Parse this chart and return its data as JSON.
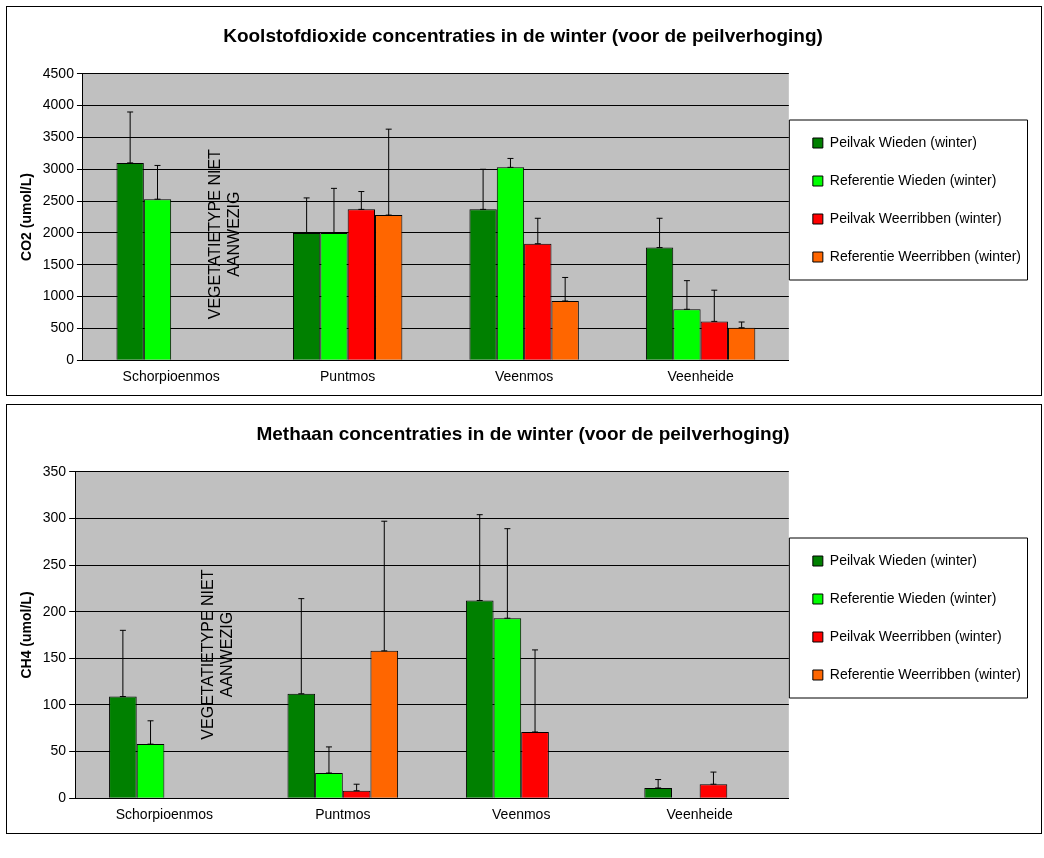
{
  "chart_data": [
    {
      "type": "bar",
      "title": "Koolstofdioxide concentraties in de winter (voor de peilverhoging)",
      "ylabel": "CO2 (umol/L)",
      "categories": [
        "Schorpioenmos",
        "Puntmos",
        "Veenmos",
        "Veenheide"
      ],
      "series": [
        {
          "name": "Peilvak Wieden (winter)",
          "color": "#008000",
          "values": [
            3100,
            2000,
            2370,
            1770
          ],
          "errors": [
            [
              3100,
              3900
            ],
            [
              2000,
              2550
            ],
            [
              2370,
              3000
            ],
            [
              1770,
              2230
            ]
          ]
        },
        {
          "name": "Referentie Wieden (winter)",
          "color": "#00ff00",
          "values": [
            2530,
            2000,
            3030,
            800
          ],
          "errors": [
            [
              2530,
              3060
            ],
            [
              2000,
              2700
            ],
            [
              3030,
              3170
            ],
            [
              800,
              1250
            ]
          ]
        },
        {
          "name": "Peilvak Weerribben (winter)",
          "color": "#ff0000",
          "values": [
            null,
            2370,
            1830,
            610
          ],
          "errors": [
            null,
            [
              2370,
              2650
            ],
            [
              1830,
              2230
            ],
            [
              610,
              1100
            ]
          ]
        },
        {
          "name": "Referentie Weerribben (winter)",
          "color": "#ff6600",
          "values": [
            null,
            2280,
            930,
            510
          ],
          "errors": [
            null,
            [
              2280,
              3630
            ],
            [
              930,
              1300
            ],
            [
              510,
              600
            ]
          ]
        }
      ],
      "ylim": [
        0,
        4500
      ],
      "yticks": [
        0,
        500,
        1000,
        1500,
        2000,
        2500,
        3000,
        3500,
        4000,
        4500
      ],
      "grid": "y",
      "legend": "right",
      "annotations": [
        "VEGETATIETYPE NIET AANWEZIG"
      ]
    },
    {
      "type": "bar",
      "title": "Methaan concentraties in de winter (voor de peilverhoging)",
      "ylabel": "CH4 (umol/L)",
      "categories": [
        "Schorpioenmos",
        "Puntmos",
        "Veenmos",
        "Veenheide"
      ],
      "series": [
        {
          "name": "Peilvak Wieden (winter)",
          "color": "#008000",
          "values": [
            109,
            112,
            212,
            11
          ],
          "errors": [
            [
              109,
              180
            ],
            [
              112,
              214
            ],
            [
              212,
              304
            ],
            [
              11,
              20
            ]
          ]
        },
        {
          "name": "Referentie Wieden (winter)",
          "color": "#00ff00",
          "values": [
            58,
            27,
            193,
            null
          ],
          "errors": [
            [
              58,
              83
            ],
            [
              27,
              55
            ],
            [
              193,
              289
            ],
            null
          ]
        },
        {
          "name": "Peilvak Weerribben (winter)",
          "color": "#ff0000",
          "values": [
            null,
            8,
            71,
            15
          ],
          "errors": [
            null,
            [
              8,
              15
            ],
            [
              71,
              159
            ],
            [
              15,
              28
            ]
          ]
        },
        {
          "name": "Referentie Weerribben (winter)",
          "color": "#ff6600",
          "values": [
            null,
            158,
            null,
            null
          ],
          "errors": [
            null,
            [
              158,
              297
            ],
            null,
            null
          ]
        }
      ],
      "ylim": [
        0,
        350
      ],
      "yticks": [
        0,
        50,
        100,
        150,
        200,
        250,
        300,
        350
      ],
      "grid": "y",
      "legend": "right",
      "annotations": [
        "VEGETATIETYPE NIET AANWEZIG"
      ]
    }
  ]
}
